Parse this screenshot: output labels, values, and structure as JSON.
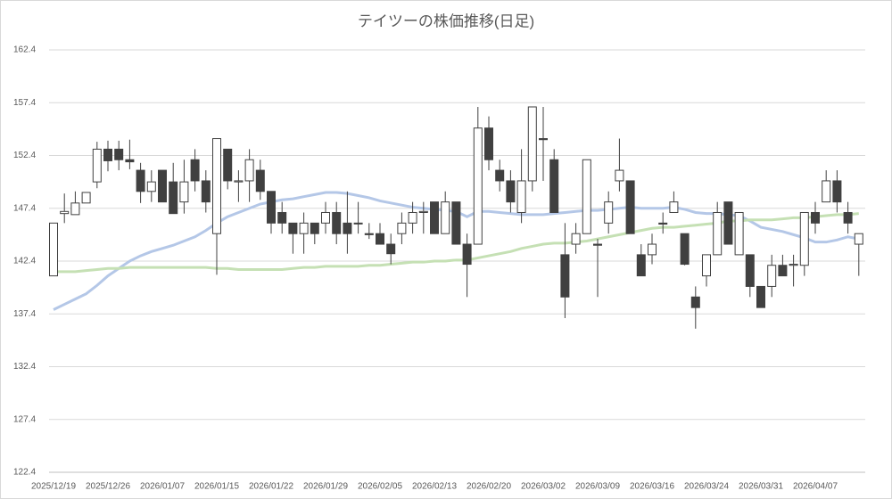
{
  "chart_data": {
    "type": "candlestick",
    "title": "テイツーの株価推移(日足)",
    "categories": [
      "2025/12/19",
      null,
      null,
      null,
      null,
      "2025/12/26",
      null,
      null,
      null,
      null,
      "2026/01/07",
      null,
      null,
      null,
      null,
      "2026/01/15",
      null,
      null,
      null,
      null,
      "2026/01/22",
      null,
      null,
      null,
      null,
      "2026/01/29",
      null,
      null,
      null,
      null,
      "2026/02/05",
      null,
      null,
      null,
      null,
      "2026/02/13",
      null,
      null,
      null,
      null,
      "2026/02/20",
      null,
      null,
      null,
      null,
      "2026/03/02",
      null,
      null,
      null,
      null,
      "2026/03/09",
      null,
      null,
      null,
      null,
      "2026/03/16",
      null,
      null,
      null,
      null,
      "2026/03/24",
      null,
      null,
      null,
      null,
      "2026/03/31",
      null,
      null,
      null,
      null,
      "2026/04/07",
      null,
      null,
      null,
      null
    ],
    "open": [
      141.0,
      146.9,
      146.8,
      147.9,
      149.9,
      153.0,
      153.0,
      152.0,
      151.0,
      149.0,
      151.0,
      149.9,
      148.0,
      152.0,
      150.0,
      145.0,
      153.0,
      149.9,
      150.0,
      151.0,
      149.0,
      147.0,
      146.0,
      145.0,
      146.0,
      146.0,
      147.0,
      146.0,
      146.0,
      145.0,
      145.0,
      144.0,
      145.0,
      146.0,
      147.0,
      148.0,
      145.0,
      148.0,
      144.0,
      144.0,
      155.0,
      151.0,
      150.0,
      147.0,
      150.0,
      154.0,
      152.0,
      143.0,
      144.0,
      145.0,
      144.0,
      146.0,
      150.0,
      150.0,
      143.0,
      143.0,
      146.0,
      147.0,
      145.0,
      139.0,
      141.0,
      143.0,
      148.0,
      143.0,
      143.0,
      140.0,
      140.0,
      142.0,
      142.0,
      142.0,
      147.0,
      148.0,
      150.0,
      147.0,
      144.0
    ],
    "high": [
      146.0,
      148.8,
      149.0,
      148.9,
      153.7,
      153.8,
      153.8,
      153.9,
      151.7,
      151.0,
      151.0,
      151.7,
      152.0,
      153.0,
      151.0,
      154.0,
      153.0,
      151.0,
      153.0,
      152.0,
      149.0,
      148.0,
      146.0,
      147.0,
      146.0,
      148.0,
      148.0,
      149.0,
      148.0,
      146.0,
      146.0,
      145.0,
      147.0,
      148.0,
      148.0,
      148.0,
      149.0,
      148.0,
      145.0,
      157.0,
      156.1,
      152.0,
      151.0,
      153.0,
      157.0,
      157.0,
      153.0,
      146.0,
      146.0,
      152.0,
      144.5,
      149.0,
      154.0,
      150.0,
      144.0,
      145.0,
      147.0,
      149.0,
      145.0,
      140.0,
      143.0,
      148.0,
      148.0,
      147.0,
      143.0,
      140.0,
      143.0,
      143.0,
      143.0,
      147.0,
      148.0,
      151.0,
      151.0,
      148.0,
      145.0
    ],
    "low": [
      141.0,
      146.0,
      146.8,
      147.9,
      149.3,
      150.9,
      151.0,
      151.1,
      147.9,
      148.0,
      148.0,
      146.9,
      146.9,
      149.0,
      147.0,
      141.1,
      149.2,
      148.0,
      148.0,
      148.2,
      145.0,
      145.0,
      143.1,
      143.1,
      144.0,
      145.0,
      144.0,
      143.1,
      145.0,
      144.5,
      144.0,
      142.1,
      144.0,
      145.0,
      145.0,
      145.0,
      145.0,
      144.0,
      139.0,
      144.0,
      151.0,
      149.0,
      147.0,
      146.0,
      149.0,
      150.0,
      147.0,
      137.0,
      143.1,
      145.0,
      139.0,
      145.0,
      149.0,
      145.0,
      141.0,
      142.1,
      145.0,
      147.0,
      142.0,
      136.0,
      140.0,
      143.0,
      144.0,
      143.0,
      139.0,
      138.0,
      139.0,
      141.0,
      140.0,
      141.0,
      145.0,
      148.0,
      147.0,
      145.0,
      141.0
    ],
    "close": [
      146.0,
      147.1,
      147.9,
      148.9,
      153.0,
      151.9,
      152.0,
      151.8,
      149.0,
      149.9,
      148.0,
      146.9,
      149.9,
      150.0,
      148.0,
      154.0,
      150.0,
      150.0,
      152.0,
      149.0,
      146.0,
      146.0,
      145.0,
      146.0,
      145.0,
      147.0,
      145.0,
      145.0,
      146.0,
      144.9,
      144.0,
      143.1,
      146.0,
      147.0,
      147.1,
      145.0,
      148.0,
      144.0,
      142.1,
      155.0,
      152.0,
      150.0,
      148.0,
      150.0,
      157.0,
      153.9,
      147.0,
      139.0,
      145.0,
      152.0,
      143.9,
      148.0,
      151.0,
      145.0,
      141.0,
      144.0,
      145.9,
      148.0,
      142.1,
      138.0,
      143.0,
      147.0,
      144.0,
      147.0,
      140.0,
      138.0,
      142.0,
      141.0,
      142.1,
      147.0,
      146.0,
      150.0,
      148.0,
      146.0,
      145.0
    ],
    "up_color": "#ffffff",
    "down_color": "#404040",
    "edge_color": "#404040",
    "series": [
      {
        "color": "#b4c7e7",
        "values": [
          137.8,
          138.3,
          138.8,
          139.3,
          140.1,
          141.0,
          141.7,
          142.4,
          142.9,
          143.3,
          143.6,
          143.9,
          144.3,
          144.7,
          145.3,
          146.0,
          146.6,
          147.0,
          147.4,
          147.8,
          148.0,
          148.2,
          148.3,
          148.5,
          148.7,
          148.9,
          148.9,
          148.8,
          148.6,
          148.4,
          148.1,
          147.9,
          147.7,
          147.5,
          147.4,
          147.3,
          147.2,
          147.1,
          146.6,
          147.1,
          147.1,
          147.0,
          146.9,
          146.8,
          146.8,
          146.8,
          146.9,
          147.0,
          147.1,
          147.2,
          147.2,
          147.3,
          147.4,
          147.5,
          147.4,
          147.4,
          147.4,
          147.5,
          147.3,
          147.0,
          146.9,
          146.9,
          146.8,
          146.7,
          146.2,
          145.6,
          145.4,
          145.2,
          144.9,
          144.6,
          144.2,
          144.2,
          144.4,
          144.7,
          144.5
        ]
      },
      {
        "color": "#c5e0b4",
        "values": [
          141.4,
          141.4,
          141.4,
          141.5,
          141.6,
          141.7,
          141.7,
          141.8,
          141.8,
          141.8,
          141.8,
          141.8,
          141.8,
          141.8,
          141.8,
          141.7,
          141.7,
          141.6,
          141.6,
          141.6,
          141.6,
          141.6,
          141.7,
          141.8,
          141.8,
          141.9,
          141.9,
          141.9,
          141.9,
          142.0,
          142.0,
          142.1,
          142.2,
          142.3,
          142.3,
          142.4,
          142.4,
          142.5,
          142.5,
          142.7,
          142.9,
          143.1,
          143.3,
          143.6,
          143.8,
          144.0,
          144.1,
          144.1,
          144.2,
          144.3,
          144.5,
          144.7,
          144.9,
          145.1,
          145.3,
          145.5,
          145.6,
          145.6,
          145.7,
          145.8,
          145.9,
          146.0,
          146.2,
          146.2,
          146.3,
          146.3,
          146.3,
          146.4,
          146.5,
          146.5,
          146.6,
          146.7,
          146.8,
          146.8,
          146.9
        ]
      }
    ],
    "ylim": [
      122.4,
      162.4
    ],
    "yticks": [
      122.4,
      127.4,
      132.4,
      137.4,
      142.4,
      147.4,
      152.4,
      157.4,
      162.4
    ],
    "grid": true
  }
}
